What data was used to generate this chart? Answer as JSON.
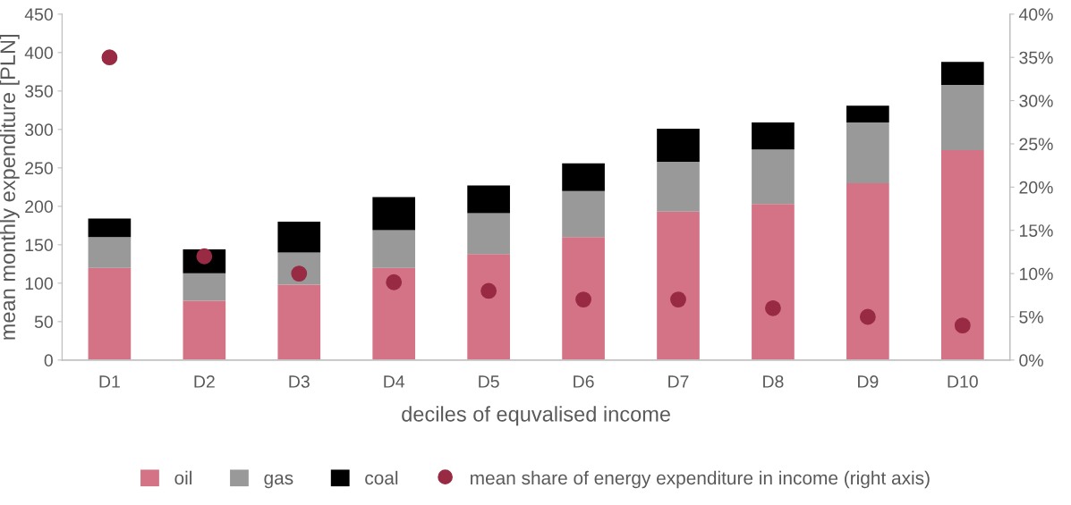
{
  "chart_data": {
    "type": "bar",
    "stacked": true,
    "xlabel": "deciles of equvalised income",
    "ylabel": "mean monthly expenditure [PLN]",
    "categories": [
      "D1",
      "D2",
      "D3",
      "D4",
      "D5",
      "D6",
      "D7",
      "D8",
      "D9",
      "D10"
    ],
    "series": [
      {
        "name": "oil",
        "color": "#d37385",
        "values": [
          120,
          77,
          98,
          120,
          138,
          160,
          193,
          203,
          230,
          273
        ]
      },
      {
        "name": "gas",
        "color": "#999999",
        "values": [
          40,
          36,
          42,
          49,
          53,
          60,
          65,
          71,
          79,
          85
        ]
      },
      {
        "name": "coal",
        "color": "#000000",
        "values": [
          24,
          31,
          40,
          43,
          36,
          36,
          43,
          35,
          22,
          30
        ]
      },
      {
        "name": "mean share of energy expenditure in income (right axis)",
        "type": "scatter",
        "axis": "y2",
        "color": "#982b43",
        "marker": "circle",
        "x": [
          "D1",
          "D2",
          "D3",
          "D4",
          "D5",
          "D6",
          "D7",
          "D8",
          "D9",
          "D10"
        ],
        "values": [
          35,
          12,
          10,
          9,
          8,
          7,
          7,
          6,
          5,
          4
        ]
      }
    ],
    "ylim": [
      0,
      450
    ],
    "yticks": [
      0,
      50,
      100,
      150,
      200,
      250,
      300,
      350,
      400,
      450
    ],
    "y2lim": [
      0,
      40
    ],
    "y2ticks": [
      {
        "value": 0,
        "label": "0%"
      },
      {
        "value": 5,
        "label": "5%"
      },
      {
        "value": 10,
        "label": "10%"
      },
      {
        "value": 15,
        "label": "15%"
      },
      {
        "value": 20,
        "label": "20%"
      },
      {
        "value": 25,
        "label": "25%"
      },
      {
        "value": 30,
        "label": "30%"
      },
      {
        "value": 35,
        "label": "35%"
      },
      {
        "value": 40,
        "label": "40%"
      }
    ],
    "grid": false,
    "legend": "bottom"
  }
}
